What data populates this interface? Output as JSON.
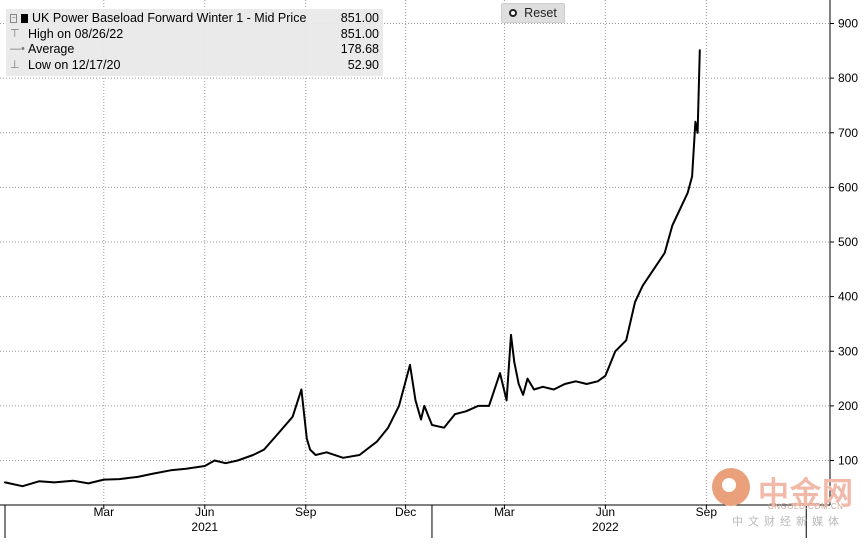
{
  "legend": {
    "series_label": "UK Power Baseload Forward Winter 1 - Mid Price",
    "series_value": "851.00",
    "high_label": "High on 08/26/22",
    "high_value": "851.00",
    "average_label": "Average",
    "average_value": "178.68",
    "low_label": "Low on 12/17/20",
    "low_value": "52.90"
  },
  "reset_button": {
    "label": "Reset",
    "icon": "reset-dot-icon"
  },
  "watermark": {
    "brand": "中金网",
    "url": "CNGOLD.COM.CN",
    "subtitle": "中文财经新媒体"
  },
  "colors": {
    "line": "#000000",
    "grid": "#9a9a9a",
    "legend_bg": "#e8e8e8",
    "button_bg": "#dedede"
  },
  "chart_data": {
    "type": "line",
    "title": "UK Power Baseload Forward Winter 1 - Mid Price",
    "xlabel": "",
    "ylabel": "",
    "y_axis_side": "right",
    "ylim": [
      0,
      920
    ],
    "y_ticks": [
      100,
      200,
      300,
      400,
      500,
      600,
      700,
      800,
      900
    ],
    "x_tick_labels": [
      "Mar",
      "Jun",
      "Sep",
      "Dec",
      "Mar",
      "Jun",
      "Sep"
    ],
    "x_tick_dates": [
      "2021-03-01",
      "2021-06-01",
      "2021-09-01",
      "2021-12-01",
      "2022-03-01",
      "2022-06-01",
      "2022-09-01"
    ],
    "year_labels": [
      {
        "label": "2021",
        "date": "2021-06-01"
      },
      {
        "label": "2022",
        "date": "2022-06-01"
      }
    ],
    "year_separators": [
      "2020-12-01",
      "2021-12-25",
      "2022-12-01"
    ],
    "grid": true,
    "legend_position": "top-left",
    "series": [
      {
        "name": "UK Power Baseload Forward Winter 1 - Mid Price",
        "x": [
          "2020-12-01",
          "2020-12-17",
          "2021-01-01",
          "2021-01-15",
          "2021-02-01",
          "2021-02-15",
          "2021-03-01",
          "2021-03-15",
          "2021-04-01",
          "2021-04-15",
          "2021-05-01",
          "2021-05-15",
          "2021-06-01",
          "2021-06-10",
          "2021-06-20",
          "2021-07-01",
          "2021-07-15",
          "2021-07-25",
          "2021-08-05",
          "2021-08-20",
          "2021-08-28",
          "2021-09-02",
          "2021-09-05",
          "2021-09-10",
          "2021-09-20",
          "2021-10-05",
          "2021-10-20",
          "2021-11-05",
          "2021-11-15",
          "2021-11-25",
          "2021-12-05",
          "2021-12-10",
          "2021-12-15",
          "2021-12-18",
          "2021-12-25",
          "2022-01-05",
          "2022-01-15",
          "2022-01-25",
          "2022-02-05",
          "2022-02-15",
          "2022-02-25",
          "2022-03-03",
          "2022-03-07",
          "2022-03-10",
          "2022-03-14",
          "2022-03-18",
          "2022-03-22",
          "2022-03-28",
          "2022-04-05",
          "2022-04-15",
          "2022-04-25",
          "2022-05-05",
          "2022-05-15",
          "2022-05-25",
          "2022-06-01",
          "2022-06-10",
          "2022-06-20",
          "2022-06-28",
          "2022-07-05",
          "2022-07-15",
          "2022-07-25",
          "2022-08-01",
          "2022-08-08",
          "2022-08-15",
          "2022-08-19",
          "2022-08-22",
          "2022-08-24",
          "2022-08-26"
        ],
        "y": [
          60,
          53,
          62,
          60,
          63,
          58,
          65,
          66,
          70,
          76,
          82,
          85,
          90,
          100,
          95,
          100,
          110,
          120,
          145,
          180,
          230,
          140,
          120,
          110,
          115,
          105,
          110,
          135,
          160,
          200,
          275,
          210,
          175,
          200,
          165,
          160,
          185,
          190,
          200,
          200,
          260,
          210,
          330,
          280,
          240,
          220,
          250,
          230,
          235,
          230,
          240,
          245,
          240,
          245,
          255,
          300,
          320,
          390,
          420,
          450,
          480,
          530,
          560,
          590,
          620,
          720,
          700,
          851
        ]
      }
    ]
  }
}
